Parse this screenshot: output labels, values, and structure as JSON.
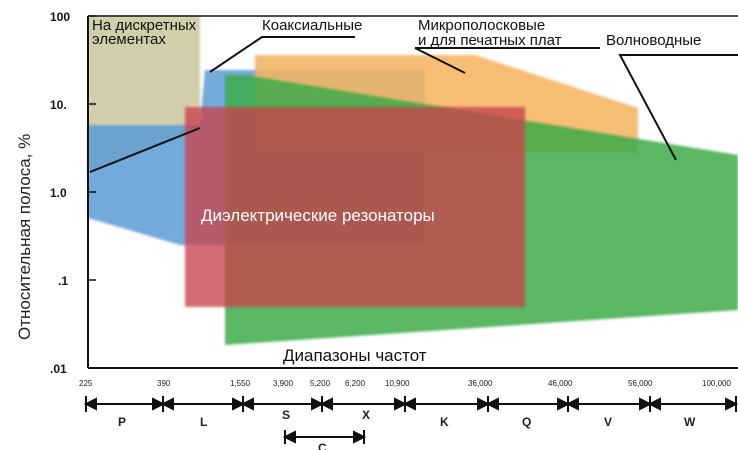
{
  "diagram": {
    "y_axis_label": "Относительная полоса, %",
    "y_ticks": [
      "100",
      "10.",
      "1.0",
      ".1",
      ".01"
    ],
    "x_axis_label": "Диапазоны частот",
    "freq_ticks": [
      "225",
      "390",
      "1,550",
      "3,900",
      "5,200",
      "6,200",
      "10,900",
      "36,000",
      "46,000",
      "56,000",
      "100,000"
    ],
    "bands": [
      "P",
      "L",
      "S",
      "X",
      "K",
      "Q",
      "V",
      "W"
    ],
    "sub_band": "C",
    "regions": [
      {
        "id": "discrete",
        "label_lines": [
          "На дискретных",
          "элементах"
        ],
        "color": "#c9c79a"
      },
      {
        "id": "coax",
        "label_lines": [
          "Коаксиальные"
        ],
        "color": "#5b9bd5"
      },
      {
        "id": "microstrip",
        "label_lines": [
          "Микрополосковые",
          "и для печатных плат"
        ],
        "color": "#f5b461"
      },
      {
        "id": "waveguide",
        "label_lines": [
          "Волноводные"
        ],
        "color": "#3daa48"
      },
      {
        "id": "dielectric",
        "label_lines": [
          "Диэлектрические резонаторы"
        ],
        "color": "#c8434a"
      }
    ]
  }
}
